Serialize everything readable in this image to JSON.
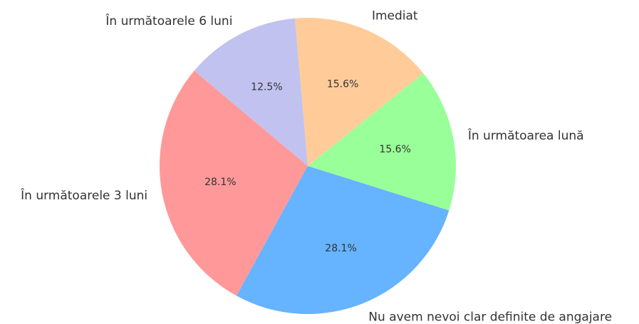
{
  "chart_data": {
    "type": "pie",
    "categories": [
      "În următoarele 3 luni",
      "Nu avem nevoi clar definite de angajare",
      "În următoarea lună",
      "Imediat",
      "În următoarele 6 luni"
    ],
    "values": [
      28.1,
      28.1,
      15.6,
      15.6,
      12.5
    ],
    "value_labels": [
      "28.1%",
      "28.1%",
      "15.6%",
      "15.6%",
      "12.5%"
    ],
    "colors": [
      "#ff9999",
      "#66b3ff",
      "#99ff99",
      "#ffcc99",
      "#c2c2f0"
    ],
    "startangle": 140
  }
}
